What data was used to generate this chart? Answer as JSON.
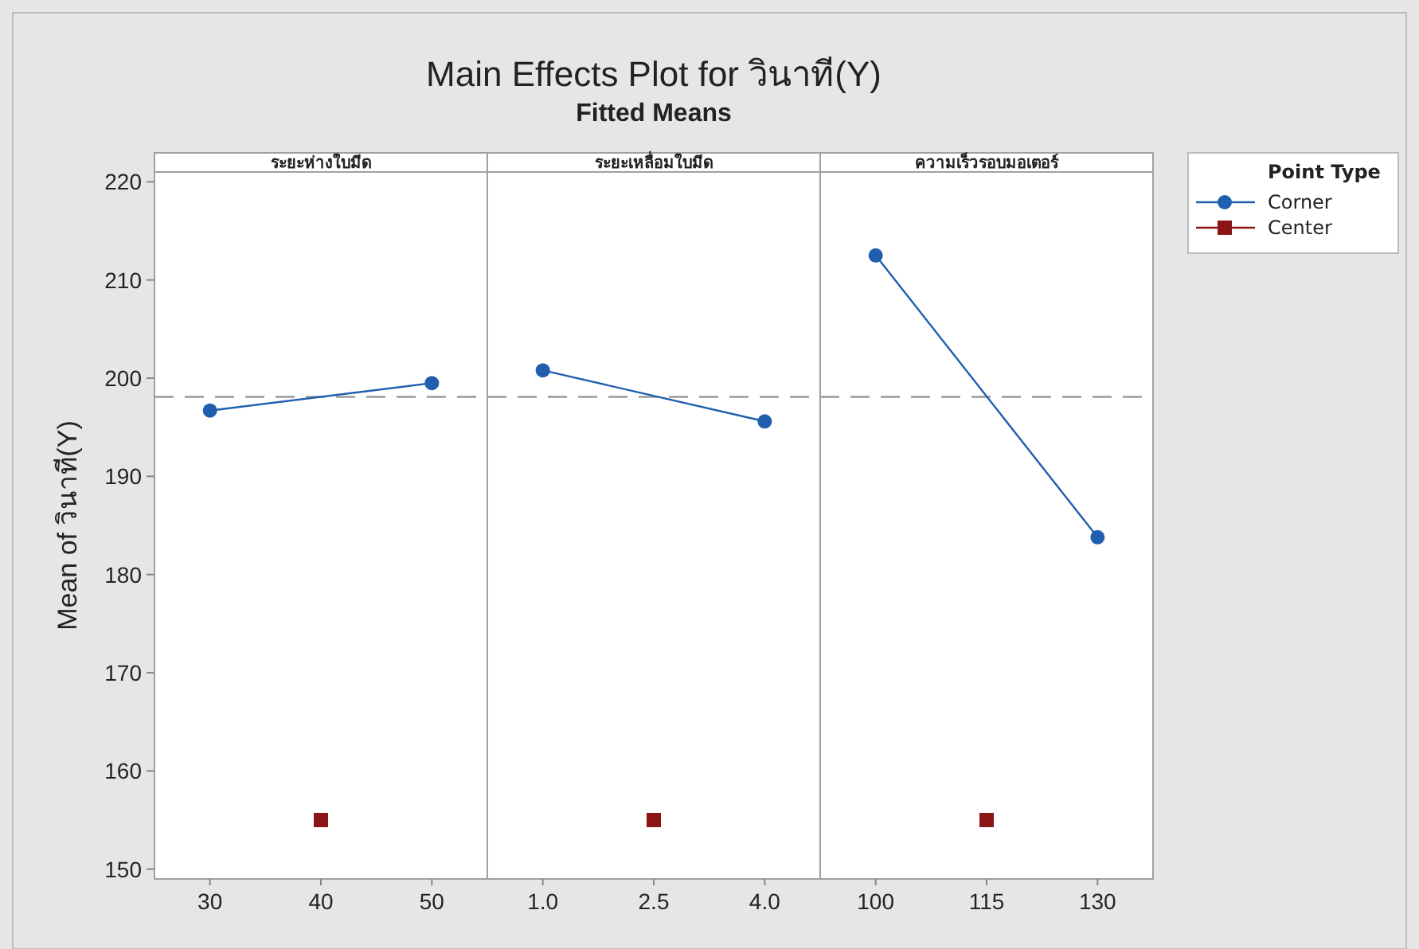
{
  "chart_data": [
    {
      "type": "line",
      "title": "ระยะห่างใบมีด",
      "ylabel": "Mean of วินาที(Y)",
      "categories": [
        "30",
        "40",
        "50"
      ],
      "ylim": [
        149,
        221
      ],
      "yticks": [
        150,
        160,
        170,
        180,
        190,
        200,
        210,
        220
      ],
      "ref_lines": [
        {
          "axis": "y",
          "value": 198.1,
          "color": "#999999",
          "line_style": "dashed"
        }
      ],
      "series": [
        {
          "color": "#1f5fae",
          "marker": "circle",
          "values": [
            196.7,
            null,
            199.5
          ]
        },
        {
          "type": "scatter",
          "color": "#8b1414",
          "marker": "square",
          "values": [
            null,
            155,
            null
          ]
        }
      ]
    },
    {
      "type": "line",
      "title": "ระยะเหลื่อมใบมีด",
      "annotations": [
        "Main Effects Plot for วินาที(Y)",
        "Fitted Means"
      ],
      "categories": [
        "1.0",
        "2.5",
        "4.0"
      ],
      "ylim": [
        149,
        221
      ],
      "tick_labels": "x",
      "ref_lines": [
        {
          "axis": "y",
          "value": 198.1,
          "color": "#999999",
          "line_style": "dashed"
        }
      ],
      "series": [
        {
          "color": "#1f5fae",
          "marker": "circle",
          "values": [
            200.8,
            null,
            195.6
          ]
        },
        {
          "type": "scatter",
          "color": "#8b1414",
          "marker": "square",
          "values": [
            null,
            155,
            null
          ]
        }
      ]
    },
    {
      "type": "line",
      "title": "ความเร็วรอบมอเตอร์",
      "categories": [
        "100",
        "115",
        "130"
      ],
      "ylim": [
        149,
        221
      ],
      "tick_labels": "x",
      "legend": "right",
      "legend_title": "Point Type",
      "ref_lines": [
        {
          "axis": "y",
          "value": 198.1,
          "color": "#999999",
          "line_style": "dashed"
        }
      ],
      "series": [
        {
          "name": "Corner",
          "color": "#1f5fae",
          "marker": "circle",
          "values": [
            212.5,
            null,
            183.8
          ]
        },
        {
          "name": "Center",
          "type": "scatter",
          "color": "#8b1414",
          "marker": "square",
          "values": [
            null,
            155,
            null
          ]
        }
      ]
    }
  ]
}
